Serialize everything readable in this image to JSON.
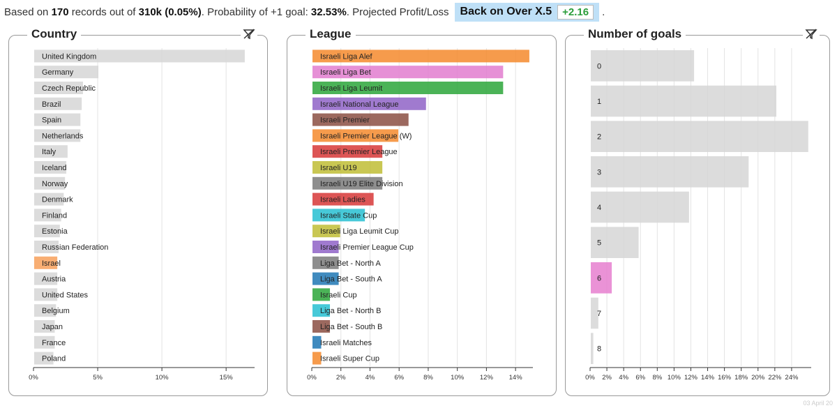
{
  "header": {
    "prefix": "Based on",
    "records": "170",
    "mid1": "records out of",
    "total": "310k",
    "pct": "(0.05%)",
    "prob_label": ". Probability of +1 goal:",
    "prob_value": "32.53%",
    "pl_label": ". Projected Profit/Loss",
    "button_label": "Back on Over X.5",
    "pl_value": "+2.16",
    "trailing": "."
  },
  "footer": {
    "date": "03 April 20"
  },
  "colors": {
    "neutral": "#d6d6d6",
    "highlight_country": "#f7a05a",
    "highlight_goal": "#e67fcf"
  },
  "chart_data": [
    {
      "type": "bar",
      "orientation": "horizontal",
      "title": "Country",
      "categories": [
        "United Kingdom",
        "Germany",
        "Czech Republic",
        "Brazil",
        "Spain",
        "Netherlands",
        "Italy",
        "Iceland",
        "Norway",
        "Denmark",
        "Finland",
        "Estonia",
        "Russian Federation",
        "Israel",
        "Austria",
        "United States",
        "Belgium",
        "Japan",
        "France",
        "Poland"
      ],
      "values": [
        16.4,
        5.0,
        3.8,
        3.7,
        3.6,
        3.6,
        2.6,
        2.5,
        2.4,
        2.3,
        2.1,
        2.0,
        1.9,
        1.8,
        1.8,
        1.8,
        1.7,
        1.6,
        1.6,
        1.5
      ],
      "colors": [
        "#d6d6d6",
        "#d6d6d6",
        "#d6d6d6",
        "#d6d6d6",
        "#d6d6d6",
        "#d6d6d6",
        "#d6d6d6",
        "#d6d6d6",
        "#d6d6d6",
        "#d6d6d6",
        "#d6d6d6",
        "#d6d6d6",
        "#d6d6d6",
        "#f7a05a",
        "#d6d6d6",
        "#d6d6d6",
        "#d6d6d6",
        "#d6d6d6",
        "#d6d6d6",
        "#d6d6d6"
      ],
      "xlim": [
        0,
        17
      ],
      "ticks": [
        0,
        5,
        10,
        15
      ],
      "tick_labels": [
        "0%",
        "5%",
        "10%",
        "15%"
      ]
    },
    {
      "type": "bar",
      "orientation": "horizontal",
      "title": "League",
      "categories": [
        "Israeli Liga Alef",
        "Israeli Liga Bet",
        "Israeli Liga Leumit",
        "Israeli National League",
        "Israeli Premier",
        "Israeli Premier League (W)",
        "Israeli Premier League",
        "Israeli U19",
        "Israeli U19 Elite Division",
        "Israeli Ladies",
        "Israeli State Cup",
        "Israeli Liga Leumit Cup",
        "Israeli Premier League Cup",
        "Liga Bet - North A",
        "Liga Bet - South A",
        "Israeli Cup",
        "Liga Bet - North B",
        "Liga Bet - South B",
        "Israeli Matches",
        "Israeli Super Cup"
      ],
      "values": [
        14.9,
        13.1,
        13.1,
        7.8,
        6.6,
        5.9,
        4.8,
        4.8,
        4.8,
        4.2,
        3.6,
        1.9,
        1.8,
        1.8,
        1.8,
        1.2,
        1.2,
        1.2,
        0.6,
        0.6
      ],
      "colors": [
        "#f4892d",
        "#e27ccf",
        "#2ba63a",
        "#8f63c7",
        "#8b4f43",
        "#f4892d",
        "#d73737",
        "#bfbd35",
        "#7a7a7a",
        "#d73737",
        "#27bfd1",
        "#bfbd35",
        "#8f63c7",
        "#7a7a7a",
        "#1f77b4",
        "#2ba63a",
        "#27bfd1",
        "#8b4f43",
        "#1f77b4",
        "#f4892d"
      ],
      "xlim": [
        0,
        15
      ],
      "ticks": [
        0,
        2,
        4,
        6,
        8,
        10,
        12,
        14
      ],
      "tick_labels": [
        "0%",
        "2%",
        "4%",
        "6%",
        "8%",
        "10%",
        "12%",
        "14%"
      ]
    },
    {
      "type": "bar",
      "orientation": "horizontal",
      "title": "Number of goals",
      "categories": [
        "0",
        "1",
        "2",
        "3",
        "4",
        "5",
        "6",
        "7",
        "8"
      ],
      "values": [
        12.3,
        22.1,
        25.9,
        18.8,
        11.7,
        5.7,
        2.5,
        0.9,
        0.3
      ],
      "colors": [
        "#d6d6d6",
        "#d6d6d6",
        "#d6d6d6",
        "#d6d6d6",
        "#d6d6d6",
        "#d6d6d6",
        "#e67fcf",
        "#d6d6d6",
        "#d6d6d6"
      ],
      "xlim": [
        0,
        26
      ],
      "ticks": [
        0,
        2,
        4,
        6,
        8,
        10,
        12,
        14,
        16,
        18,
        20,
        22,
        24
      ],
      "tick_labels": [
        "0%",
        "2%",
        "4%",
        "6%",
        "8%",
        "10%",
        "12%",
        "14%",
        "16%",
        "18%",
        "20%",
        "22%",
        "24%"
      ]
    }
  ]
}
